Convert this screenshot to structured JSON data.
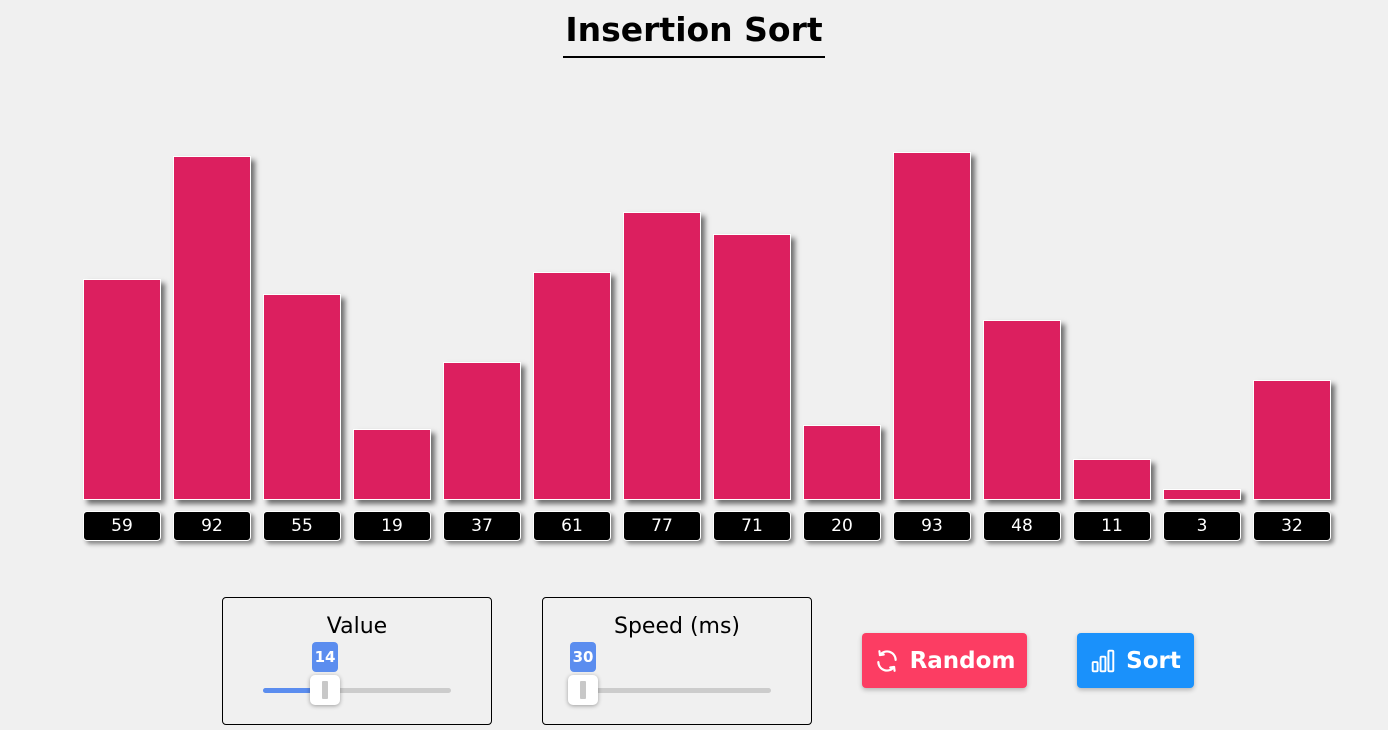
{
  "title": "Insertion Sort",
  "bars": {
    "values": [
      59,
      92,
      55,
      19,
      37,
      61,
      77,
      71,
      20,
      93,
      48,
      11,
      3,
      32
    ],
    "color": "#dc1f5f",
    "max_value": 93
  },
  "controls": {
    "value_slider": {
      "label": "Value",
      "value": "14",
      "fraction": 0.33
    },
    "speed_slider": {
      "label": "Speed (ms)",
      "value": "30",
      "fraction": 0.0
    }
  },
  "buttons": {
    "random": {
      "label": "Random",
      "icon": "refresh-icon",
      "color": "#fc3d63"
    },
    "sort": {
      "label": "Sort",
      "icon": "bar-chart-icon",
      "color": "#1a91fb"
    }
  }
}
